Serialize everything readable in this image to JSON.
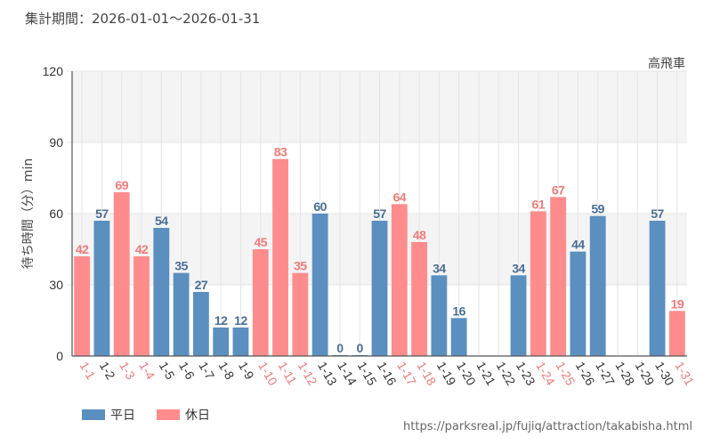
{
  "period_text": "集計期間：2026-01-01〜2026-01-31",
  "attraction": "高飛車",
  "source_url": "https://parksreal.jp/fujiq/attraction/takabisha.html",
  "legend": [
    {
      "label": "平日",
      "color": "#5b8fbf"
    },
    {
      "label": "休日",
      "color": "#ff8c8c"
    }
  ],
  "chart_data": {
    "type": "bar",
    "title": "",
    "xlabel": "",
    "ylabel": "待ち時間（分）min",
    "ylim": [
      0,
      120
    ],
    "yticks": [
      0,
      30,
      60,
      90,
      120
    ],
    "grid": true,
    "categories": [
      "1-1",
      "1-2",
      "1-3",
      "1-4",
      "1-5",
      "1-6",
      "1-7",
      "1-8",
      "1-9",
      "1-10",
      "1-11",
      "1-12",
      "1-13",
      "1-14",
      "1-15",
      "1-16",
      "1-17",
      "1-18",
      "1-19",
      "1-20",
      "1-21",
      "1-22",
      "1-23",
      "1-24",
      "1-25",
      "1-26",
      "1-27",
      "1-28",
      "1-29",
      "1-30",
      "1-31"
    ],
    "values": [
      42,
      57,
      69,
      42,
      54,
      35,
      27,
      12,
      12,
      45,
      83,
      35,
      60,
      0,
      0,
      57,
      64,
      48,
      34,
      16,
      null,
      null,
      34,
      61,
      67,
      44,
      59,
      null,
      null,
      57,
      19
    ],
    "day_types": [
      "holiday",
      "weekday",
      "holiday",
      "holiday",
      "weekday",
      "weekday",
      "weekday",
      "weekday",
      "weekday",
      "holiday",
      "holiday",
      "holiday",
      "weekday",
      "weekday",
      "weekday",
      "weekday",
      "holiday",
      "holiday",
      "weekday",
      "weekday",
      "weekday",
      "weekday",
      "weekday",
      "holiday",
      "holiday",
      "weekday",
      "weekday",
      "weekday",
      "weekday",
      "weekday",
      "holiday"
    ],
    "colors": {
      "weekday": "#5b8fbf",
      "holiday": "#ff8c8c",
      "weekday_label": "#4a6f96",
      "holiday_label": "#f07a7a",
      "band": "#f4f4f4",
      "grid": "#e4e4e4",
      "axis": "#555555"
    }
  }
}
